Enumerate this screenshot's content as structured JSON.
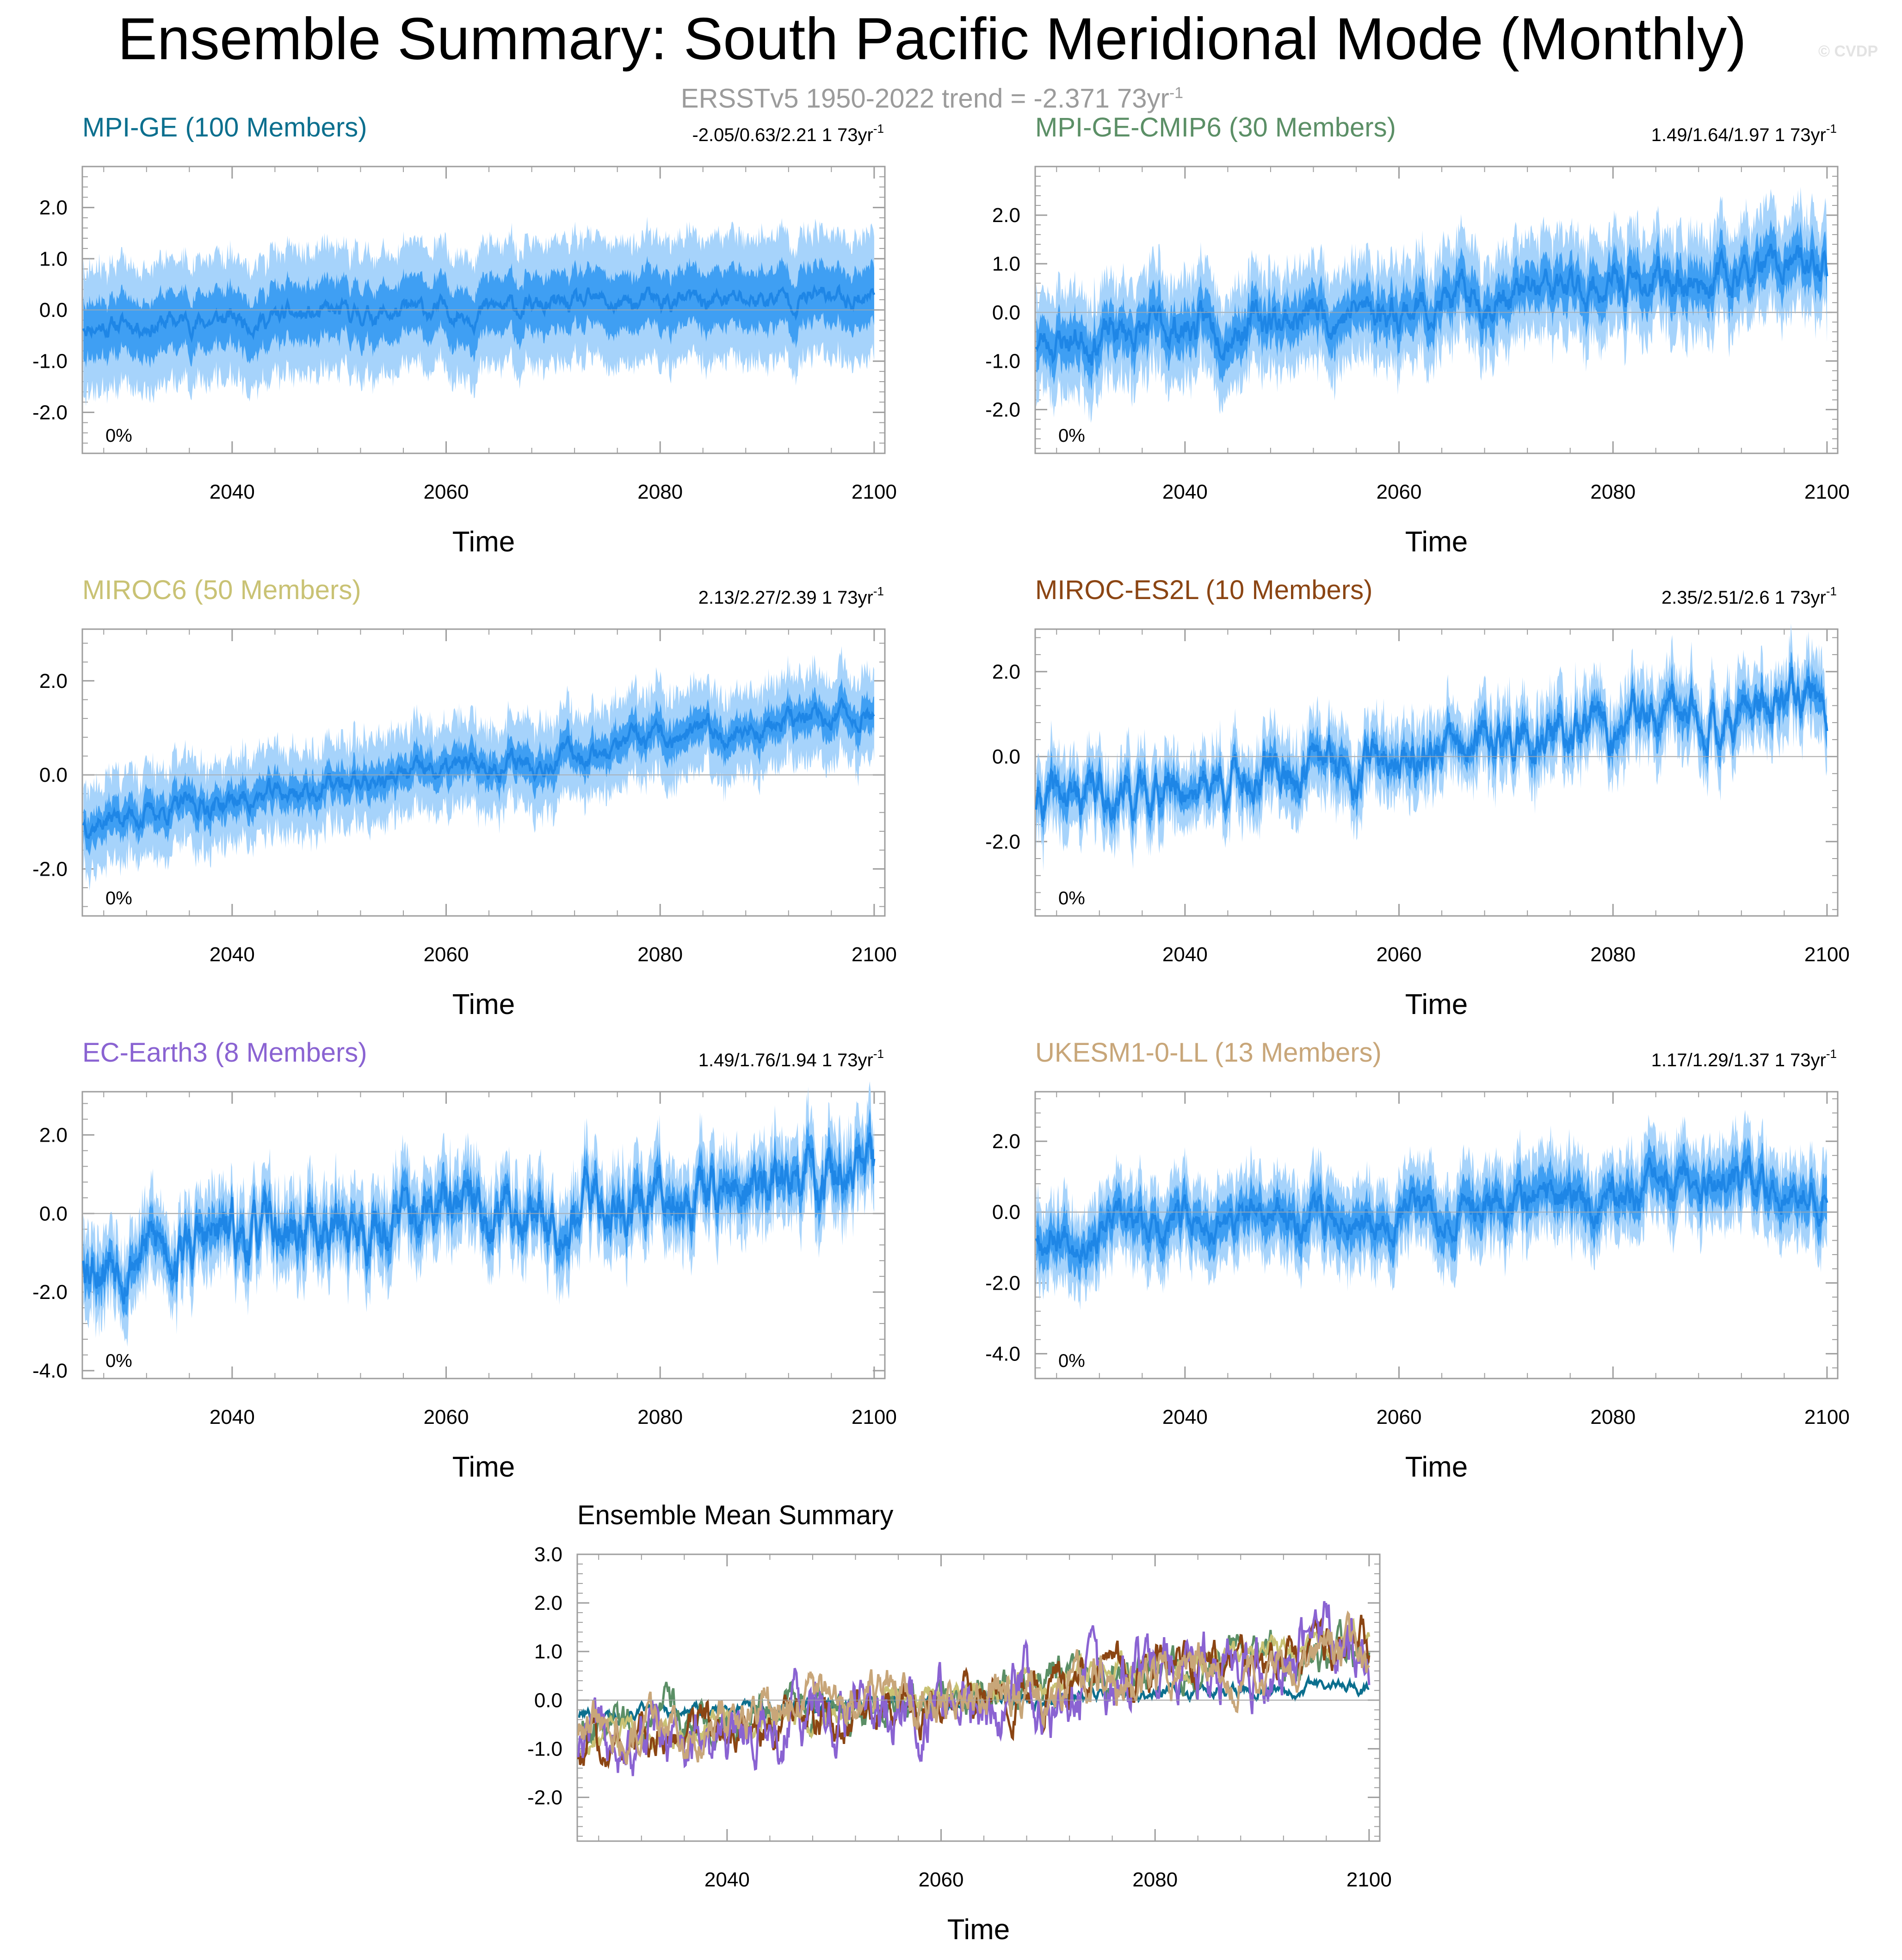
{
  "title": "Ensemble Summary: South Pacific Meridional Mode (Monthly)",
  "copyright": "© CVDP",
  "subtitle": "ERSSTv5 1950-2022 trend = -2.371 73yr",
  "subtitle_sup": "-1",
  "colors": {
    "band_outer": "#a6d3fb",
    "band_inner": "#3f9ff3",
    "mean_line": "#1e86e6",
    "zero_line": "#a9a9a9",
    "frame": "#9e9e9e"
  },
  "chart_data": [
    {
      "type": "area",
      "id": "mpi-ge",
      "title": "MPI-GE (100 Members)",
      "title_color": "#0b6f8e",
      "trend_text": "-2.05/0.63/2.21 1 73yr",
      "trend_sup": "-1",
      "pct_label": "0%",
      "xlabel": "Time",
      "xlim": [
        2026,
        2101
      ],
      "ylim": [
        -2.8,
        2.8
      ],
      "xticks": [
        2040,
        2060,
        2080,
        2100
      ],
      "yticks": [
        -2.0,
        -1.0,
        0.0,
        1.0,
        2.0
      ],
      "ytick_labels": [
        "-2.0",
        "-1.0",
        "0.0",
        "1.0",
        "2.0"
      ],
      "mean_start": -0.3,
      "mean_end": 0.3,
      "inner_half": 0.55,
      "outer_half": 1.15,
      "noise": 0.1,
      "spike": 0.3,
      "seed": 11
    },
    {
      "type": "area",
      "id": "mpi-ge-cmip6",
      "title": "MPI-GE-CMIP6 (30 Members)",
      "title_color": "#5b8f66",
      "trend_text": "1.49/1.64/1.97 1 73yr",
      "trend_sup": "-1",
      "pct_label": "0%",
      "xlabel": "Time",
      "xlim": [
        2026,
        2101
      ],
      "ylim": [
        -2.9,
        3.0
      ],
      "xticks": [
        2040,
        2060,
        2080,
        2100
      ],
      "yticks": [
        -2.0,
        -1.0,
        0.0,
        1.0,
        2.0
      ],
      "ytick_labels": [
        "-2.0",
        "-1.0",
        "0.0",
        "1.0",
        "2.0"
      ],
      "mean_start": -0.6,
      "mean_end": 0.95,
      "inner_half": 0.45,
      "outer_half": 0.95,
      "noise": 0.18,
      "spike": 0.45,
      "seed": 23
    },
    {
      "type": "area",
      "id": "miroc6",
      "title": "MIROC6 (50 Members)",
      "title_color": "#c9c274",
      "trend_text": "2.13/2.27/2.39 1 73yr",
      "trend_sup": "-1",
      "pct_label": "0%",
      "xlabel": "Time",
      "xlim": [
        2026,
        2101
      ],
      "ylim": [
        -3.0,
        3.1
      ],
      "xticks": [
        2040,
        2060,
        2080,
        2100
      ],
      "yticks": [
        -2.0,
        0.0,
        2.0
      ],
      "ytick_labels": [
        "-2.0",
        "0.0",
        "2.0"
      ],
      "mean_start": -1.0,
      "mean_end": 1.35,
      "inner_half": 0.35,
      "outer_half": 0.85,
      "noise": 0.12,
      "spike": 0.4,
      "seed": 37
    },
    {
      "type": "area",
      "id": "miroc-es2l",
      "title": "MIROC-ES2L (10 Members)",
      "title_color": "#8b4513",
      "trend_text": "2.35/2.51/2.6 1 73yr",
      "trend_sup": "-1",
      "pct_label": "0%",
      "xlabel": "Time",
      "xlim": [
        2026,
        2101
      ],
      "ylim": [
        -3.75,
        3.0
      ],
      "xticks": [
        2040,
        2060,
        2080,
        2100
      ],
      "yticks": [
        -2.0,
        0.0,
        2.0
      ],
      "ytick_labels": [
        "-2.0",
        "0.0",
        "2.0"
      ],
      "mean_start": -1.1,
      "mean_end": 1.3,
      "inner_half": 0.35,
      "outer_half": 0.75,
      "noise": 0.25,
      "spike": 0.55,
      "seed": 41
    },
    {
      "type": "area",
      "id": "ec-earth3",
      "title": "EC-Earth3 (8 Members)",
      "title_color": "#8a63d2",
      "trend_text": "1.49/1.76/1.94 1 73yr",
      "trend_sup": "-1",
      "pct_label": "0%",
      "xlabel": "Time",
      "xlim": [
        2026,
        2101
      ],
      "ylim": [
        -4.2,
        3.1
      ],
      "xticks": [
        2040,
        2060,
        2080,
        2100
      ],
      "yticks": [
        -4.0,
        -2.0,
        0.0,
        2.0
      ],
      "ytick_labels": [
        "-4.0",
        "-2.0",
        "0.0",
        "2.0"
      ],
      "mean_start": -1.0,
      "mean_end": 1.0,
      "inner_half": 0.45,
      "outer_half": 0.9,
      "noise": 0.35,
      "spike": 0.6,
      "seed": 53
    },
    {
      "type": "area",
      "id": "ukesm1-0-ll",
      "title": "UKESM1-0-LL (13 Members)",
      "title_color": "#c8a679",
      "trend_text": "1.17/1.29/1.37 1 73yr",
      "trend_sup": "-1",
      "pct_label": "0%",
      "xlabel": "Time",
      "xlim": [
        2026,
        2101
      ],
      "ylim": [
        -4.7,
        3.4
      ],
      "xticks": [
        2040,
        2060,
        2080,
        2100
      ],
      "yticks": [
        -4.0,
        -2.0,
        0.0,
        2.0
      ],
      "ytick_labels": [
        "-4.0",
        "-2.0",
        "0.0",
        "2.0"
      ],
      "mean_start": -0.6,
      "mean_end": 0.8,
      "inner_half": 0.55,
      "outer_half": 1.05,
      "noise": 0.25,
      "spike": 0.55,
      "seed": 67
    },
    {
      "type": "line",
      "id": "ensemble-mean",
      "title": "Ensemble Mean Summary",
      "xlabel": "Time",
      "xlim": [
        2026,
        2101
      ],
      "ylim": [
        -2.9,
        3.0
      ],
      "xticks": [
        2040,
        2060,
        2080,
        2100
      ],
      "yticks": [
        -2.0,
        -1.0,
        0.0,
        1.0,
        2.0,
        3.0
      ],
      "ytick_labels": [
        "-2.0",
        "-1.0",
        "0.0",
        "1.0",
        "2.0",
        "3.0"
      ],
      "series": [
        {
          "name": "MPI-GE",
          "color": "#0b6f8e",
          "start": -0.3,
          "end": 0.3,
          "noise": 0.06,
          "seed": 101
        },
        {
          "name": "MPI-GE-CMIP6",
          "color": "#5b8f66",
          "start": -0.55,
          "end": 0.95,
          "noise": 0.18,
          "seed": 102
        },
        {
          "name": "MIROC6",
          "color": "#c9c274",
          "start": -1.0,
          "end": 1.3,
          "noise": 0.12,
          "seed": 103
        },
        {
          "name": "MIROC-ES2L",
          "color": "#8b4513",
          "start": -1.1,
          "end": 1.25,
          "noise": 0.2,
          "seed": 104
        },
        {
          "name": "EC-Earth3",
          "color": "#8a63d2",
          "start": -1.0,
          "end": 1.05,
          "noise": 0.3,
          "seed": 105
        },
        {
          "name": "UKESM1-0-LL",
          "color": "#c8a679",
          "start": -0.6,
          "end": 0.8,
          "noise": 0.22,
          "seed": 106
        }
      ]
    }
  ]
}
